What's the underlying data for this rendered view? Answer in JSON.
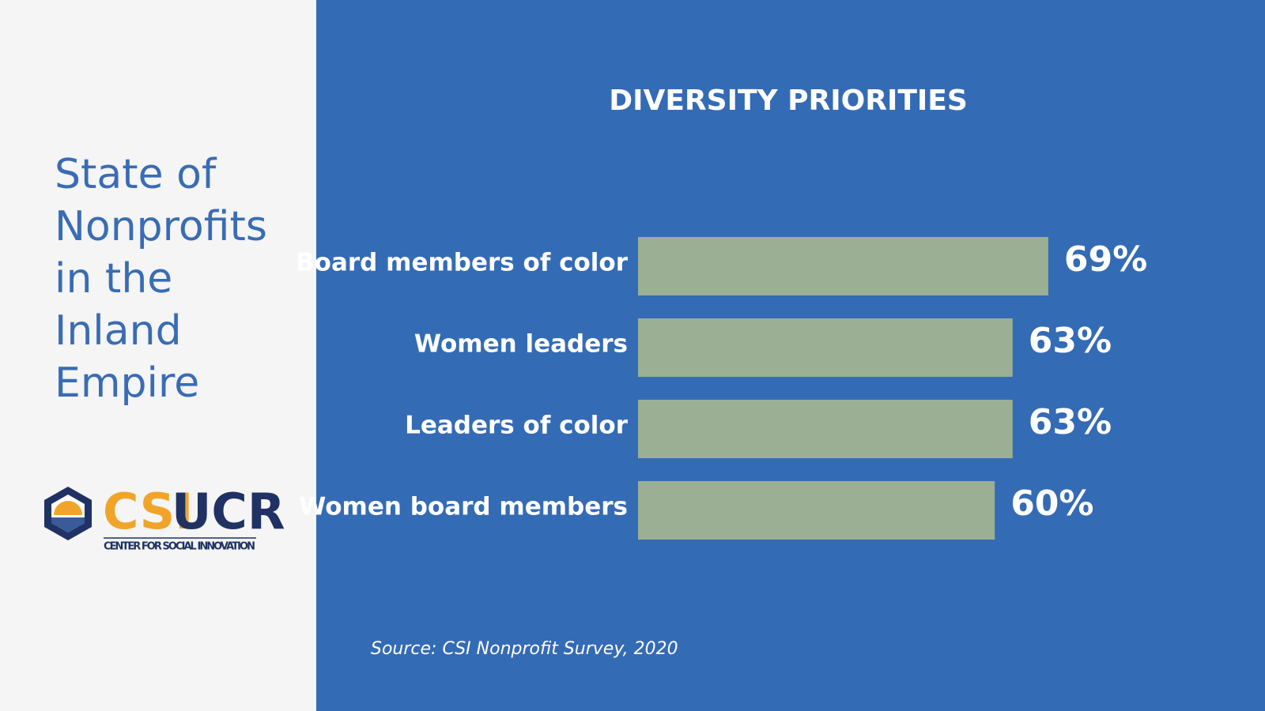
{
  "sidebar": {
    "title_lines": [
      "State of",
      "Nonprofits",
      "in the",
      "Inland",
      "Empire"
    ],
    "logo": {
      "part1": "CSI",
      "part2": "UCR",
      "subtitle": "CENTER FOR SOCIAL INNOVATION"
    }
  },
  "chart_data": {
    "type": "bar",
    "orientation": "horizontal",
    "title": "DIVERSITY PRIORITIES",
    "categories": [
      "Board members of color",
      "Women leaders",
      "Leaders of color",
      "Women board members"
    ],
    "values": [
      69,
      63,
      63,
      60
    ],
    "value_labels": [
      "69%",
      "63%",
      "63%",
      "60%"
    ],
    "color": "#9aaf93",
    "source": "Source: CSI Nonprofit Survey, 2020"
  }
}
